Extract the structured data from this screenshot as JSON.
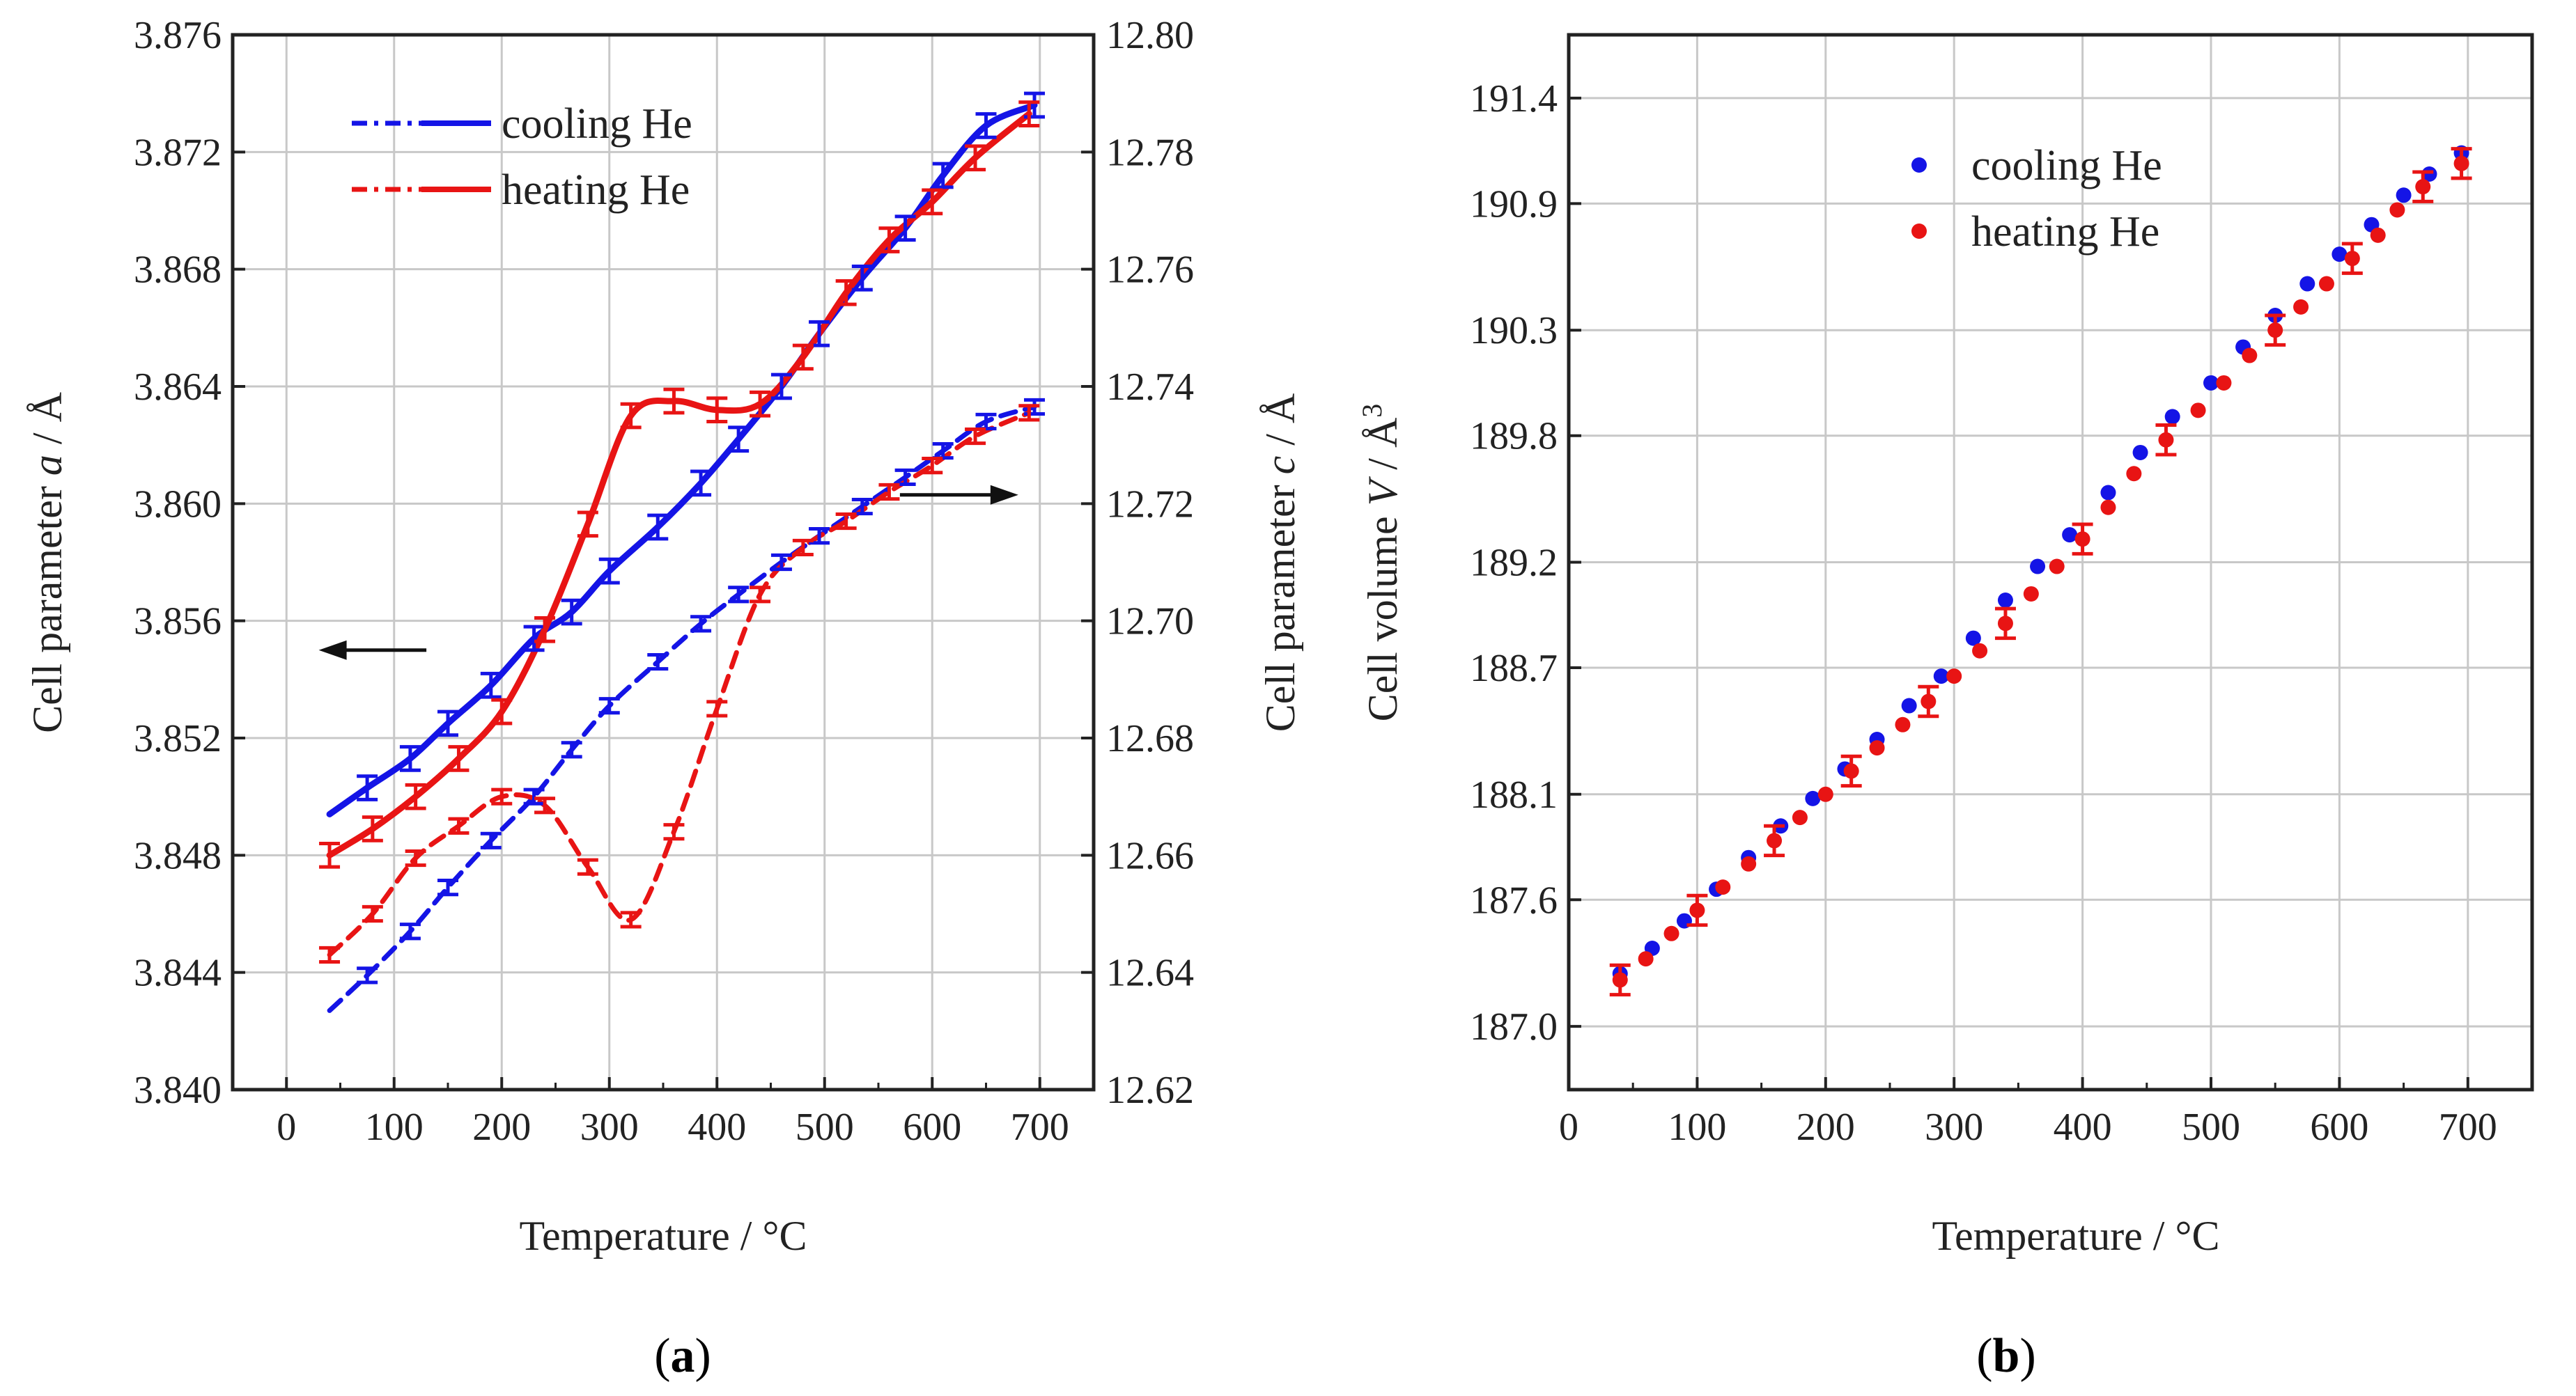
{
  "colors": {
    "cooling": "#1414e6",
    "heating": "#e81414",
    "grid": "#c8c8c8",
    "axis": "#222222"
  },
  "chart_data": [
    {
      "type": "line",
      "panel": "a",
      "caption": "(a)",
      "caption_letter": "a",
      "xlabel": "Temperature / °C",
      "ylabel_left": {
        "prefix": "Cell parameter ",
        "var": "a",
        "suffix": " / Å"
      },
      "ylabel_right": {
        "prefix": "Cell parameter ",
        "var": "c",
        "suffix": " / Å"
      },
      "xlim": [
        -50,
        750
      ],
      "ylim_left": [
        3.84,
        3.876
      ],
      "ylim_right": [
        12.62,
        12.8
      ],
      "xticks": [
        0,
        100,
        200,
        300,
        400,
        500,
        600,
        700
      ],
      "yticks_left": [
        "3.840",
        "3.844",
        "3.848",
        "3.852",
        "3.856",
        "3.860",
        "3.864",
        "3.868",
        "3.872",
        "3.876"
      ],
      "yticks_right": [
        "12.62",
        "12.64",
        "12.66",
        "12.68",
        "12.70",
        "12.72",
        "12.74",
        "12.76",
        "12.78",
        "12.80"
      ],
      "grid": true,
      "legend": {
        "location": "top-left",
        "entries": [
          {
            "label": "cooling He",
            "color": "#1414e6"
          },
          {
            "label": "heating He",
            "color": "#e81414"
          }
        ]
      },
      "series": [
        {
          "name": "cooling He a (solid, left axis)",
          "axis": "left",
          "style": "solid",
          "color": "#1414e6",
          "x": [
            40,
            75,
            115,
            150,
            190,
            230,
            265,
            300,
            345,
            385,
            420,
            460,
            495,
            535,
            575,
            610,
            650,
            695
          ],
          "y": [
            3.8494,
            3.8503,
            3.8513,
            3.8525,
            3.8538,
            3.8554,
            3.8563,
            3.8577,
            3.8592,
            3.8607,
            3.8622,
            3.864,
            3.8658,
            3.8677,
            3.8694,
            3.8712,
            3.8729,
            3.8736
          ],
          "err": 0.0004
        },
        {
          "name": "heating He a (solid, left axis)",
          "axis": "left",
          "style": "solid",
          "color": "#e81414",
          "x": [
            40,
            80,
            120,
            160,
            200,
            240,
            280,
            320,
            360,
            400,
            440,
            480,
            520,
            560,
            600,
            640,
            690
          ],
          "y": [
            3.848,
            3.8489,
            3.85,
            3.8513,
            3.8529,
            3.8557,
            3.8593,
            3.863,
            3.8635,
            3.8632,
            3.8634,
            3.865,
            3.8672,
            3.869,
            3.8703,
            3.8718,
            3.8733
          ],
          "err": 0.0004
        },
        {
          "name": "cooling He c (dashed, right axis)",
          "axis": "right",
          "style": "dashed",
          "color": "#1414e6",
          "x": [
            40,
            75,
            115,
            150,
            190,
            230,
            265,
            300,
            345,
            385,
            420,
            460,
            495,
            535,
            575,
            610,
            650,
            695
          ],
          "y": [
            12.6335,
            12.6395,
            12.647,
            12.6545,
            12.6625,
            12.67,
            12.678,
            12.6855,
            12.693,
            12.6995,
            12.7045,
            12.71,
            12.7145,
            12.7195,
            12.7245,
            12.729,
            12.734,
            12.7365
          ],
          "err": 0.0012
        },
        {
          "name": "heating He c (dashed, right axis)",
          "axis": "right",
          "style": "dashed",
          "color": "#e81414",
          "x": [
            40,
            80,
            120,
            160,
            200,
            240,
            280,
            320,
            360,
            400,
            440,
            480,
            520,
            560,
            600,
            640,
            690
          ],
          "y": [
            12.643,
            12.65,
            12.6595,
            12.665,
            12.67,
            12.6685,
            12.658,
            12.649,
            12.664,
            12.685,
            12.7045,
            12.7125,
            12.717,
            12.722,
            12.7265,
            12.7315,
            12.7355
          ],
          "err": 0.0012
        }
      ],
      "arrows": [
        {
          "direction": "left",
          "points_to": "left axis",
          "x_from": 130,
          "x_to": 30,
          "y_left_axis": 3.855
        },
        {
          "direction": "right",
          "points_to": "right axis",
          "x_from": 570,
          "x_to": 680,
          "y_left_axis": 3.8603
        }
      ]
    },
    {
      "type": "scatter",
      "panel": "b",
      "caption": "(b)",
      "caption_letter": "b",
      "xlabel": "Temperature / °C",
      "ylabel": {
        "prefix": "Cell volume ",
        "var": "V",
        "suffix": " / Å",
        "sup": "3"
      },
      "xlim": [
        0,
        750
      ],
      "ylim": [
        186.7,
        191.7
      ],
      "xticks": [
        0,
        100,
        200,
        300,
        400,
        500,
        600,
        700
      ],
      "yticks": [
        "187.0",
        "187.6",
        "188.1",
        "188.7",
        "189.2",
        "189.8",
        "190.3",
        "190.9",
        "191.4"
      ],
      "grid": true,
      "legend": {
        "location": "top-center",
        "entries": [
          {
            "label": "cooling He",
            "color": "#1414e6"
          },
          {
            "label": "heating He",
            "color": "#e81414"
          }
        ]
      },
      "series": [
        {
          "name": "cooling He",
          "color": "#1414e6",
          "x": [
            40,
            65,
            90,
            115,
            140,
            165,
            190,
            215,
            240,
            265,
            290,
            315,
            340,
            365,
            390,
            420,
            445,
            470,
            500,
            525,
            550,
            575,
            600,
            625,
            650,
            670,
            695
          ],
          "y": [
            187.25,
            187.37,
            187.5,
            187.65,
            187.8,
            187.95,
            188.08,
            188.22,
            188.36,
            188.52,
            188.66,
            188.84,
            189.02,
            189.18,
            189.33,
            189.53,
            189.72,
            189.89,
            190.05,
            190.22,
            190.37,
            190.52,
            190.66,
            190.8,
            190.94,
            191.04,
            191.14
          ],
          "err_points": []
        },
        {
          "name": "heating He",
          "color": "#e81414",
          "x": [
            40,
            60,
            80,
            100,
            120,
            140,
            160,
            180,
            200,
            220,
            240,
            260,
            280,
            300,
            320,
            340,
            360,
            380,
            400,
            420,
            440,
            465,
            490,
            510,
            530,
            550,
            570,
            590,
            610,
            630,
            645,
            665,
            695
          ],
          "y": [
            187.22,
            187.32,
            187.44,
            187.55,
            187.66,
            187.77,
            187.88,
            187.99,
            188.1,
            188.21,
            188.32,
            188.43,
            188.54,
            188.66,
            188.78,
            188.91,
            189.05,
            189.18,
            189.31,
            189.46,
            189.62,
            189.78,
            189.92,
            190.05,
            190.18,
            190.3,
            190.41,
            190.52,
            190.64,
            190.75,
            190.87,
            190.98,
            191.09
          ],
          "err_points": [
            0,
            3,
            6,
            9,
            12,
            15,
            18,
            21,
            25,
            28,
            31,
            32
          ],
          "err": 0.07
        }
      ]
    }
  ]
}
